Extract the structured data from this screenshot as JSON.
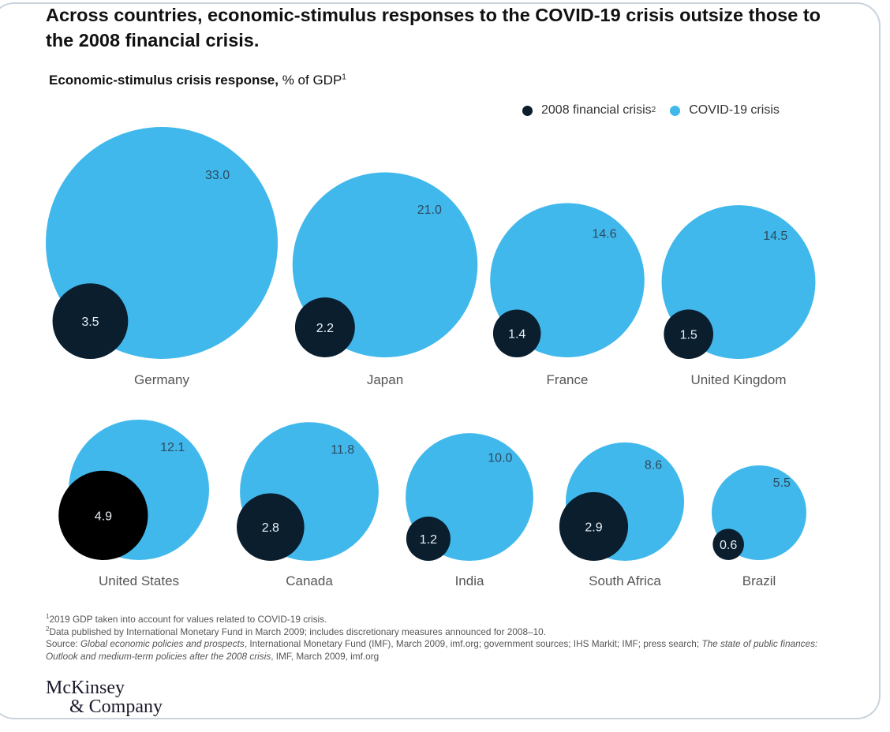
{
  "title": "Across countries, economic-stimulus responses to the COVID-19 crisis outsize those to the 2008 financial crisis.",
  "subtitle": {
    "bold": "Economic-stimulus crisis response,",
    "normal": " % of GDP",
    "footnote_marker": "1"
  },
  "legend": [
    {
      "label": "2008 financial crisis",
      "marker": "2",
      "color": "#0a1e2e"
    },
    {
      "label": "COVID-19 crisis",
      "marker": "",
      "color": "#41b8ec"
    }
  ],
  "colors": {
    "covid": "#41b8ec",
    "fin2008": "#0a1e2e",
    "fin2008_us": "#000000",
    "covid_label": "#2d4a5e",
    "fin_label": "#e8eef2",
    "country_label": "#555555"
  },
  "chart_data": {
    "type": "bubble",
    "title": "Economic-stimulus crisis response, % of GDP",
    "unit": "% of GDP",
    "legend_placement": "top-right",
    "series": [
      {
        "name": "2008 financial crisis",
        "values": [
          3.5,
          2.2,
          1.4,
          1.5,
          4.9,
          2.8,
          1.2,
          2.9,
          0.6
        ]
      },
      {
        "name": "COVID-19 crisis",
        "values": [
          33.0,
          21.0,
          14.6,
          14.5,
          12.1,
          11.8,
          10.0,
          8.6,
          5.5
        ]
      }
    ],
    "categories": [
      "Germany",
      "Japan",
      "France",
      "United Kingdom",
      "United States",
      "Canada",
      "India",
      "South Africa",
      "Brazil"
    ],
    "value_labels": {
      "fin2008": [
        "3.5",
        "2.2",
        "1.4",
        "1.5",
        "4.9",
        "2.8",
        "1.2",
        "2.9",
        "0.6"
      ],
      "covid": [
        "33.0",
        "21.0",
        "14.6",
        "14.5",
        "12.1",
        "11.8",
        "10.0",
        "8.6",
        "5.5"
      ]
    }
  },
  "footnotes": {
    "note1_marker": "1",
    "note1": "2019 GDP taken into account for values related to COVID-19 crisis.",
    "note2_marker": "2",
    "note2": "Data published by International Monetary Fund in March 2009; includes discretionary measures announced for 2008–10.",
    "source_prefix": "Source: ",
    "source_italic1": "Global economic policies and prospects",
    "source_mid": ", International Monetary Fund (IMF), March 2009, imf.org; government sources; IHS Markit; IMF; press search; ",
    "source_italic2": "The state of public finances: Outlook and medium-term policies after the 2008 crisis",
    "source_end": ", IMF, March 2009, imf.org"
  },
  "logo": {
    "line1": "McKinsey",
    "line2": "& Company"
  }
}
